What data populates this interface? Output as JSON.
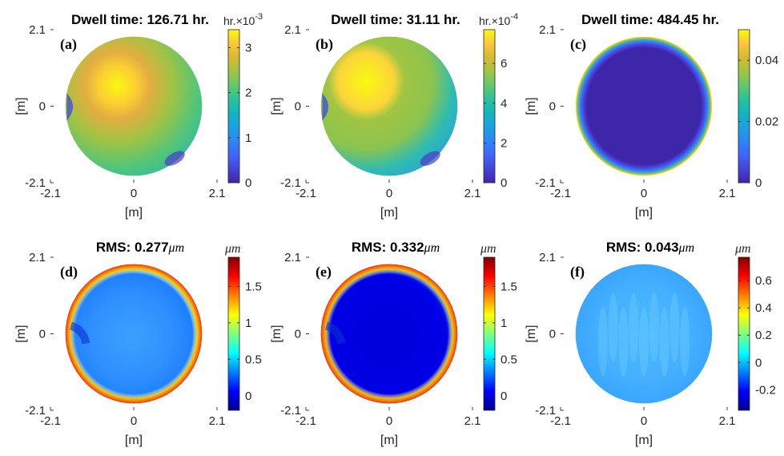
{
  "chart_data": [
    {
      "id": "a",
      "type": "heatmap",
      "panel_label": "(a)",
      "title": "Dwell time: 126.71 hr.",
      "xlabel": "[m]",
      "ylabel": "[m]",
      "xlim": [
        -2.1,
        2.1
      ],
      "ylim": [
        -2.1,
        2.1
      ],
      "xticks": [
        "-2.1",
        "0",
        "2.1"
      ],
      "yticks": [
        "-2.1",
        "0",
        "2.1"
      ],
      "colormap": "parula",
      "colorbar": {
        "min": 0,
        "max": 0.0034,
        "ticks": [
          "0",
          "1",
          "2",
          "3"
        ],
        "tick_values": [
          0,
          0.001,
          0.002,
          0.003
        ],
        "unit": "hr.",
        "exponent": "×10",
        "exponent_power": "-3"
      },
      "hotspot": {
        "x": -0.3,
        "y": 0.5,
        "value": 0.0034
      }
    },
    {
      "id": "b",
      "type": "heatmap",
      "panel_label": "(b)",
      "title": "Dwell time: 31.11 hr.",
      "xlabel": "[m]",
      "ylabel": "[m]",
      "xlim": [
        -2.1,
        2.1
      ],
      "ylim": [
        -2.1,
        2.1
      ],
      "xticks": [
        "-2.1",
        "0",
        "2.1"
      ],
      "yticks": [
        "-2.1",
        "0",
        "2.1"
      ],
      "colormap": "parula",
      "colorbar": {
        "min": 0,
        "max": 0.00077,
        "ticks": [
          "0",
          "2",
          "4",
          "6"
        ],
        "tick_values": [
          0,
          0.0002,
          0.0004,
          0.0006
        ],
        "unit": "hr.",
        "exponent": "×10",
        "exponent_power": "-4"
      },
      "hotspot": {
        "x": -0.5,
        "y": 0.4,
        "value": 0.00077
      }
    },
    {
      "id": "c",
      "type": "heatmap",
      "panel_label": "(c)",
      "title": "Dwell time: 484.45 hr.",
      "xlabel": "[m]",
      "ylabel": "[m]",
      "xlim": [
        -2.1,
        2.1
      ],
      "ylim": [
        -2.1,
        2.1
      ],
      "xticks": [
        "-2.1",
        "0",
        "2.1"
      ],
      "yticks": [
        "-2.1",
        "0",
        "2.1"
      ],
      "colormap": "parula",
      "colorbar": {
        "min": 0,
        "max": 0.05,
        "ticks": [
          "0",
          "0.02",
          "0.04"
        ],
        "tick_values": [
          0,
          0.02,
          0.04
        ],
        "unit": "",
        "exponent": "",
        "exponent_power": ""
      }
    },
    {
      "id": "d",
      "type": "heatmap",
      "panel_label": "(d)",
      "title": "RMS: 0.277μm",
      "xlabel": "[m]",
      "ylabel": "[m]",
      "xlim": [
        -2.1,
        2.1
      ],
      "ylim": [
        -2.1,
        2.1
      ],
      "xticks": [
        "-2.1",
        "0",
        "2.1"
      ],
      "yticks": [
        "-2.1",
        "0",
        "2.1"
      ],
      "colormap": "jet",
      "colorbar": {
        "min": -0.2,
        "max": 1.9,
        "ticks": [
          "0",
          "0.5",
          "1",
          "1.5"
        ],
        "tick_values": [
          0,
          0.5,
          1,
          1.5
        ],
        "unit": "μm",
        "exponent": "",
        "exponent_power": ""
      }
    },
    {
      "id": "e",
      "type": "heatmap",
      "panel_label": "(e)",
      "title": "RMS: 0.332μm",
      "xlabel": "[m]",
      "ylabel": "[m]",
      "xlim": [
        -2.1,
        2.1
      ],
      "ylim": [
        -2.1,
        2.1
      ],
      "xticks": [
        "-2.1",
        "0",
        "2.1"
      ],
      "yticks": [
        "-2.1",
        "0",
        "2.1"
      ],
      "colormap": "jet",
      "colorbar": {
        "min": -0.2,
        "max": 1.9,
        "ticks": [
          "0",
          "0.5",
          "1",
          "1.5"
        ],
        "tick_values": [
          0,
          0.5,
          1,
          1.5
        ],
        "unit": "μm",
        "exponent": "",
        "exponent_power": ""
      }
    },
    {
      "id": "f",
      "type": "heatmap",
      "panel_label": "(f)",
      "title": "RMS: 0.043μm",
      "xlabel": "[m]",
      "ylabel": "[m]",
      "xlim": [
        -2.1,
        2.1
      ],
      "ylim": [
        -2.1,
        2.1
      ],
      "xticks": [
        "-2.1",
        "0",
        "2.1"
      ],
      "yticks": [
        "-2.1",
        "0",
        "2.1"
      ],
      "colormap": "jet",
      "colorbar": {
        "min": -0.35,
        "max": 0.77,
        "ticks": [
          "-0.2",
          "0",
          "0.2",
          "0.4",
          "0.6"
        ],
        "tick_values": [
          -0.2,
          0,
          0.2,
          0.4,
          0.6
        ],
        "unit": "μm",
        "exponent": "",
        "exponent_power": ""
      }
    }
  ]
}
